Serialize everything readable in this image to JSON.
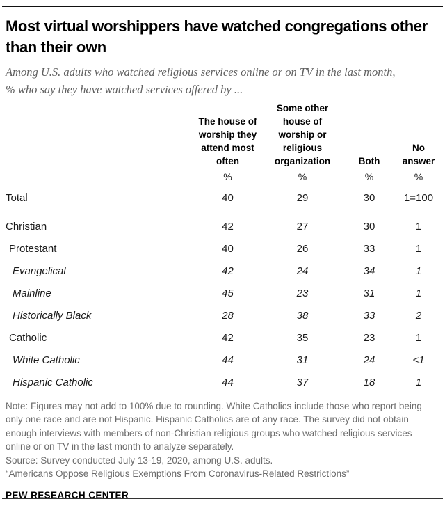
{
  "header": {
    "title": "Most virtual worshippers have watched congregations other than their own",
    "subtitle": "Among U.S. adults who watched religious services online or on TV in the last month, % who say they have watched services offered by ..."
  },
  "chart_data": {
    "type": "table",
    "title": "Most virtual worshippers have watched congregations other than their own",
    "subtitle": "Among U.S. adults who watched religious services online or on TV in the last month, % who say they have watched services offered by ...",
    "columns": [
      "The house of worship they attend most often",
      "Some other house of worship or religious organization",
      "Both",
      "No answer"
    ],
    "unit_row": [
      "%",
      "%",
      "%",
      "%"
    ],
    "rows": [
      {
        "label": "Total",
        "values": [
          "40",
          "29",
          "30",
          "1=100"
        ],
        "indent": 0,
        "italic": false,
        "gap_after": true
      },
      {
        "label": "Christian",
        "values": [
          "42",
          "27",
          "30",
          "1"
        ],
        "indent": 0,
        "italic": false,
        "gap_after": false
      },
      {
        "label": "Protestant",
        "values": [
          "40",
          "26",
          "33",
          "1"
        ],
        "indent": 1,
        "italic": false,
        "gap_after": false
      },
      {
        "label": "Evangelical",
        "values": [
          "42",
          "24",
          "34",
          "1"
        ],
        "indent": 2,
        "italic": true,
        "gap_after": false
      },
      {
        "label": "Mainline",
        "values": [
          "45",
          "23",
          "31",
          "1"
        ],
        "indent": 2,
        "italic": true,
        "gap_after": false
      },
      {
        "label": "Historically Black",
        "values": [
          "28",
          "38",
          "33",
          "2"
        ],
        "indent": 2,
        "italic": true,
        "gap_after": false
      },
      {
        "label": "Catholic",
        "values": [
          "42",
          "35",
          "23",
          "1"
        ],
        "indent": 1,
        "italic": false,
        "gap_after": false
      },
      {
        "label": "White Catholic",
        "values": [
          "44",
          "31",
          "24",
          "<1"
        ],
        "indent": 2,
        "italic": true,
        "gap_after": false
      },
      {
        "label": "Hispanic Catholic",
        "values": [
          "44",
          "37",
          "18",
          "1"
        ],
        "indent": 2,
        "italic": true,
        "gap_after": false
      }
    ]
  },
  "footer": {
    "note": "Note: Figures may not add to 100% due to rounding. White Catholics include those who report being only one race and are not Hispanic. Hispanic Catholics are of any race. The survey did not obtain enough interviews with members of non-Christian religious groups who watched religious services online or on TV in the last month to analyze separately.",
    "source": "Source: Survey conducted July 13-19, 2020, among U.S. adults.",
    "quote": "“Americans Oppose Religious Exemptions From Coronavirus-Related Restrictions”",
    "brand": "PEW RESEARCH CENTER"
  },
  "colors": {
    "title": "#000000",
    "subtitle_gray": "#5f5f5f",
    "note_gray": "#6b6b6b",
    "rule": "#111111"
  }
}
